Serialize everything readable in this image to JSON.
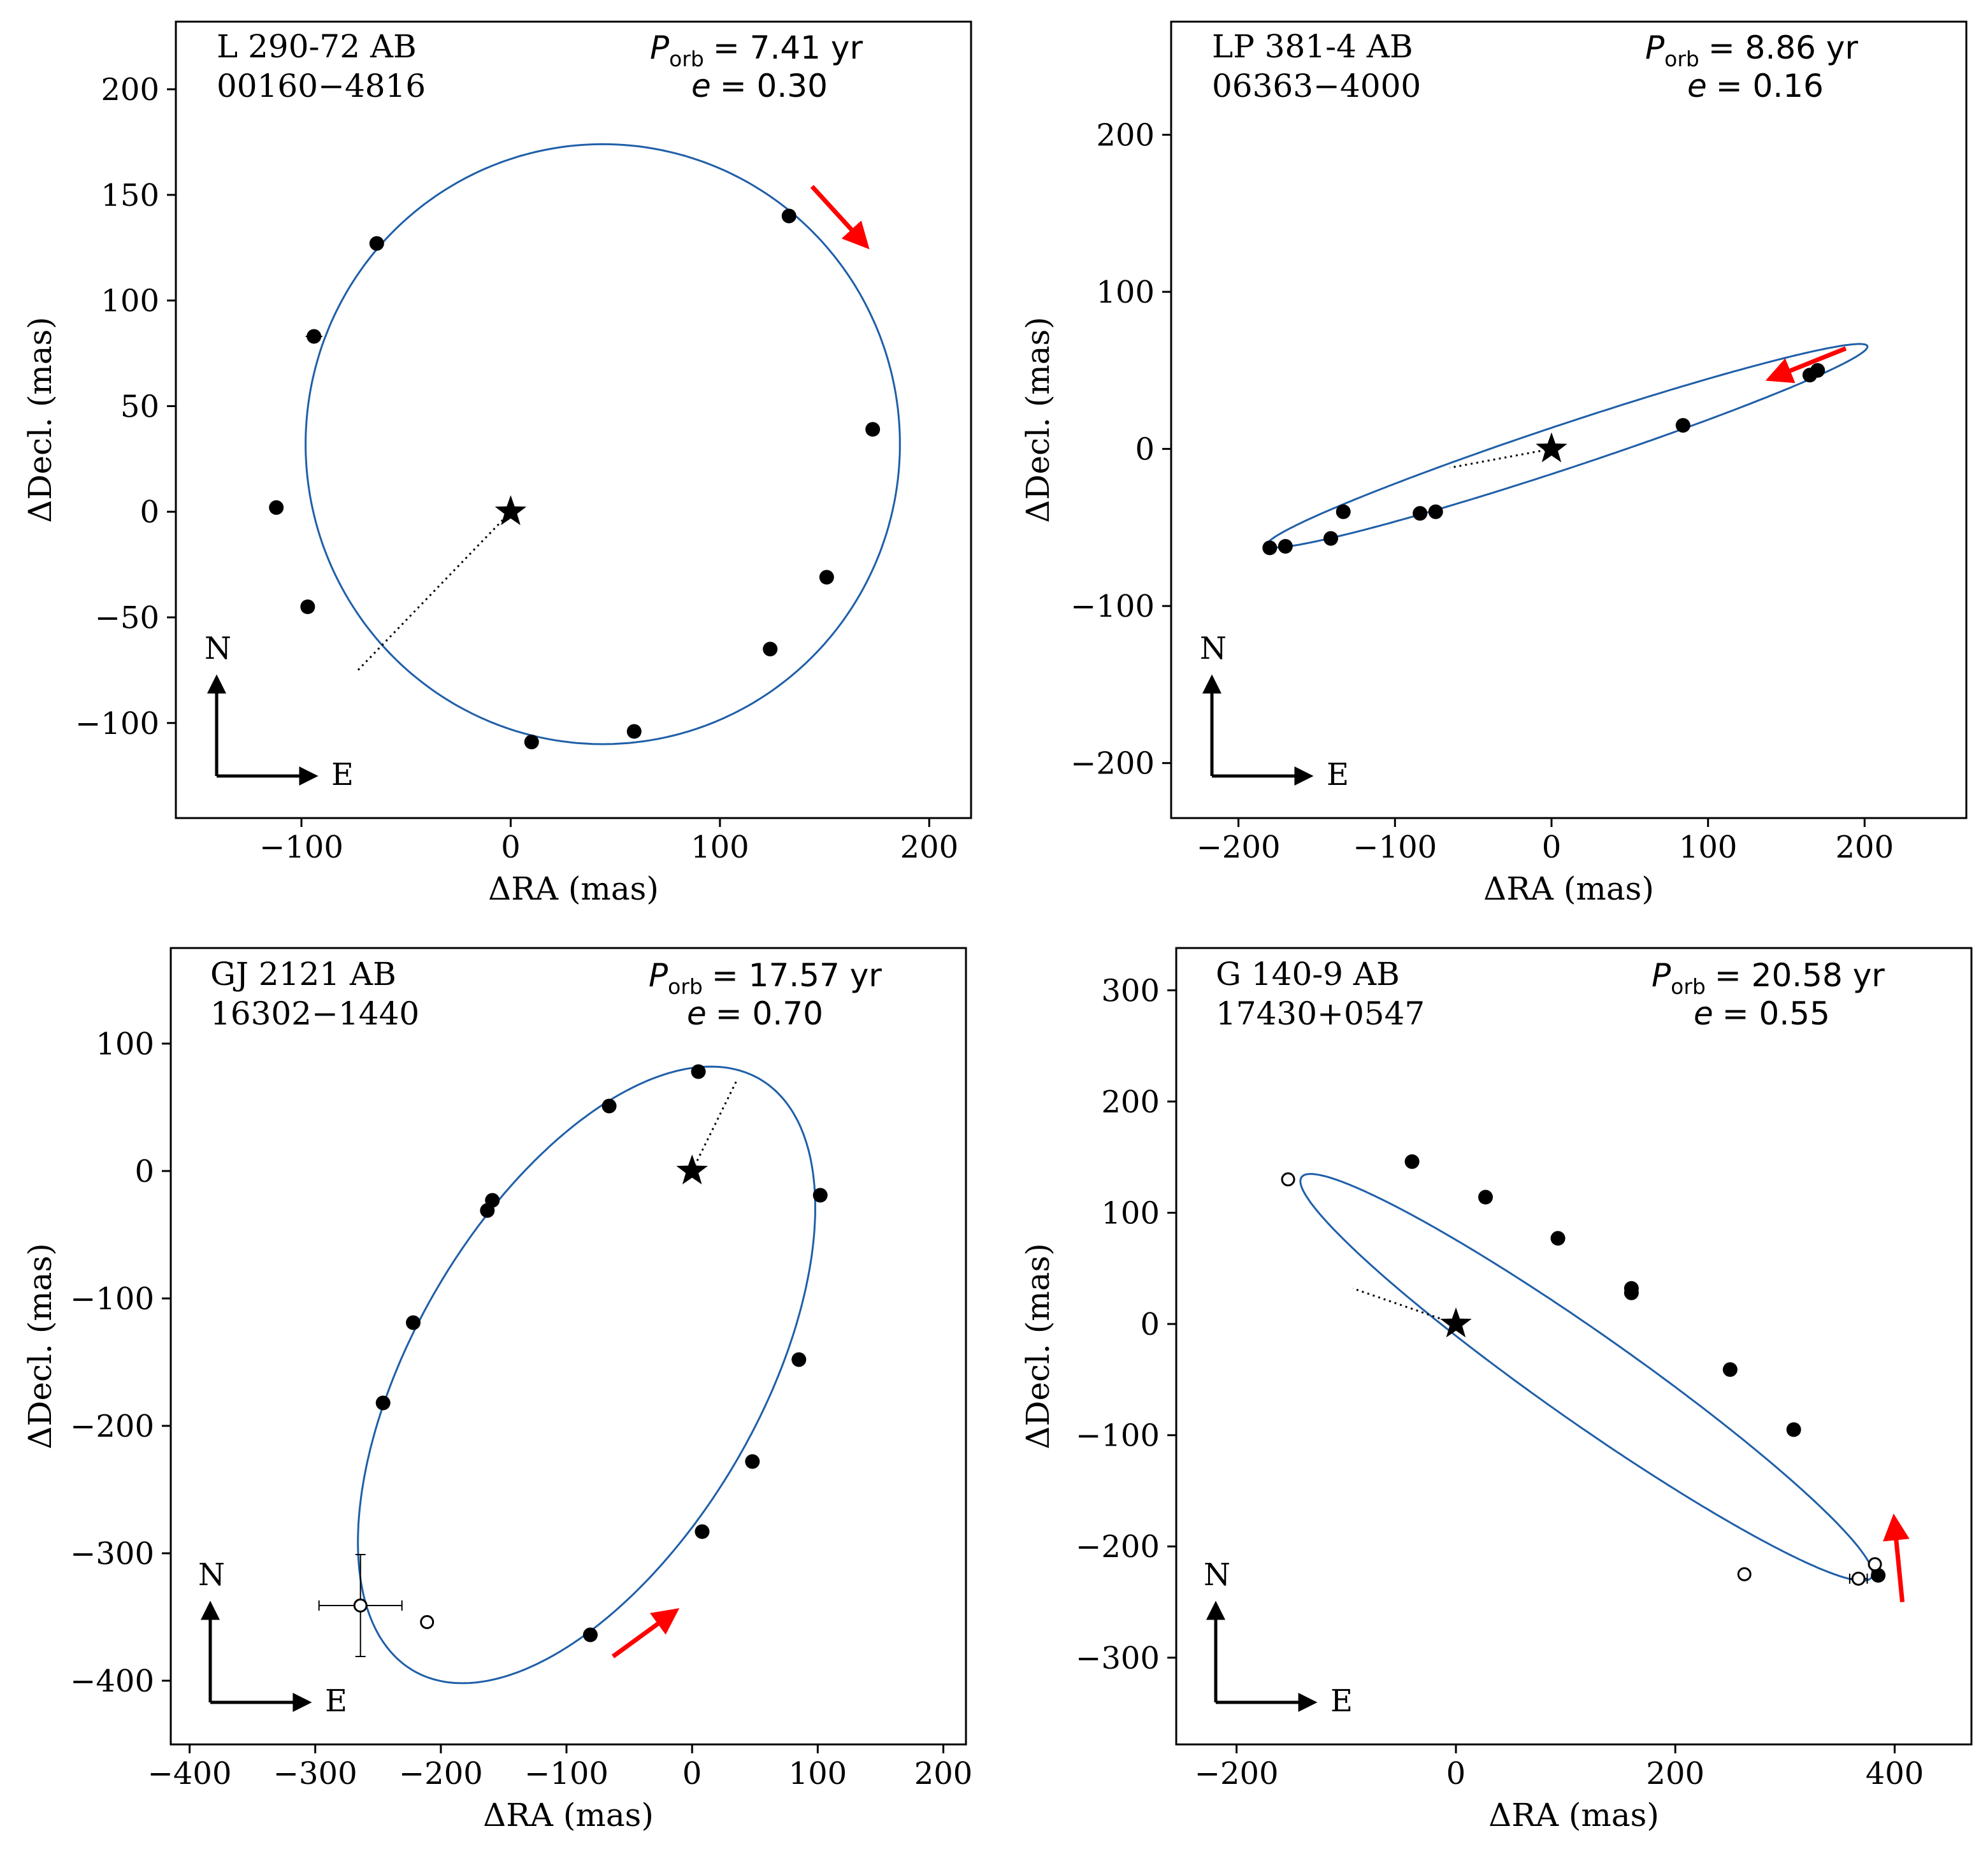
{
  "figure": {
    "xlabel": "ΔRA  (mas)",
    "ylabel": "ΔDecl.  (mas)",
    "compass": {
      "north": "N",
      "east": "E"
    },
    "colors": {
      "orbit": "#1f5fa8",
      "arrow": "#ff0000",
      "marker": "#000000"
    }
  },
  "chart_data": [
    {
      "type": "scatter",
      "name": "L 290-72 AB",
      "designation": "00160−4816",
      "period_symbol": "P",
      "period_subscript": "orb",
      "period_text": "=  7.41 yr",
      "ecc_symbol": "e",
      "ecc_text": "= 0.30",
      "xlabel": "ΔRA  (mas)",
      "ylabel": "ΔDecl.  (mas)",
      "xlim": [
        -160,
        220
      ],
      "ylim": [
        -145,
        232
      ],
      "xticks": [
        -100,
        0,
        100,
        200
      ],
      "xtick_labels": [
        "−100",
        "0",
        "100",
        "200"
      ],
      "yticks": [
        -100,
        -50,
        0,
        50,
        100,
        150,
        200
      ],
      "ytick_labels": [
        "−100",
        "−50",
        "0",
        "50",
        "100",
        "150",
        "200"
      ],
      "orbit": {
        "center": [
          44,
          32
        ],
        "semi_axes": [
          142,
          142
        ],
        "rotation_deg": 0
      },
      "periastron": [
        -73,
        -75
      ],
      "primary": [
        0,
        0
      ],
      "points": [
        [
          -64,
          127
        ],
        [
          -94,
          83
        ],
        [
          -112,
          2
        ],
        [
          -97,
          -45
        ],
        [
          10,
          -109
        ],
        [
          59,
          -104
        ],
        [
          124,
          -65
        ],
        [
          151,
          -31
        ],
        [
          173,
          39
        ],
        [
          133,
          140
        ]
      ],
      "error_bar_points": [
        [
          -94,
          83,
          4,
          3
        ]
      ],
      "open_points": [],
      "motion_arrow": {
        "from": [
          144,
          154
        ],
        "to": [
          168,
          128
        ]
      }
    },
    {
      "type": "scatter",
      "name": "LP 381-4 AB",
      "designation": "06363−4000",
      "period_symbol": "P",
      "period_subscript": "orb",
      "period_text": "=  8.86 yr",
      "ecc_symbol": "e",
      "ecc_text": "= 0.16",
      "xlabel": "ΔRA  (mas)",
      "ylabel": "ΔDecl.  (mas)",
      "xlim": [
        -243,
        265
      ],
      "ylim": [
        -235,
        272
      ],
      "xticks": [
        -200,
        -100,
        0,
        100,
        200
      ],
      "xtick_labels": [
        "−200",
        "−100",
        "0",
        "100",
        "200"
      ],
      "yticks": [
        -200,
        -100,
        0,
        100,
        200
      ],
      "ytick_labels": [
        "−200",
        "−100",
        "0",
        "100",
        "200"
      ],
      "orbit": {
        "center": [
          10,
          2
        ],
        "semi_axes": [
          202,
          14
        ],
        "rotation_deg": 18.3
      },
      "periastron": [
        -65,
        -12
      ],
      "primary": [
        0,
        0
      ],
      "points": [
        [
          -180,
          -63
        ],
        [
          -170,
          -62
        ],
        [
          -141,
          -57
        ],
        [
          -133,
          -40
        ],
        [
          -84,
          -41
        ],
        [
          -74,
          -40
        ],
        [
          84,
          15
        ],
        [
          165,
          47
        ],
        [
          170,
          50
        ]
      ],
      "error_bar_points": [],
      "open_points": [],
      "motion_arrow": {
        "from": [
          188,
          64
        ],
        "to": [
          143,
          46
        ]
      }
    },
    {
      "type": "scatter",
      "name": "GJ 2121 AB",
      "designation": "16302−1440",
      "period_symbol": "P",
      "period_subscript": "orb",
      "period_text": "= 17.57 yr",
      "ecc_symbol": "e",
      "ecc_text": "= 0.70",
      "xlabel": "ΔRA  (mas)",
      "ylabel": "ΔDecl.  (mas)",
      "xlim": [
        -415,
        218
      ],
      "ylim": [
        -450,
        175
      ],
      "xticks": [
        -400,
        -300,
        -200,
        -100,
        0,
        100,
        200
      ],
      "xtick_labels": [
        "−400",
        "−300",
        "−200",
        "−100",
        "0",
        "100",
        "200"
      ],
      "yticks": [
        -400,
        -300,
        -200,
        -100,
        0,
        100
      ],
      "ytick_labels": [
        "−400",
        "−300",
        "−200",
        "−100",
        "0",
        "100"
      ],
      "orbit": {
        "center": [
          -84,
          -160
        ],
        "semi_axes": [
          270,
          137
        ],
        "rotation_deg": 59
      },
      "periastron": [
        35,
        70
      ],
      "primary": [
        0,
        0
      ],
      "points": [
        [
          5,
          78
        ],
        [
          -66,
          51
        ],
        [
          -159,
          -23
        ],
        [
          -163,
          -31
        ],
        [
          -222,
          -119
        ],
        [
          -246,
          -182
        ],
        [
          -81,
          -364
        ],
        [
          8,
          -283
        ],
        [
          48,
          -228
        ],
        [
          85,
          -148
        ],
        [
          102,
          -19
        ]
      ],
      "error_bar_points": [],
      "open_points": [
        [
          -264,
          -341,
          33,
          40
        ],
        [
          -211,
          -354,
          0,
          0
        ]
      ],
      "motion_arrow": {
        "from": [
          -63,
          -381
        ],
        "to": [
          -17,
          -348
        ]
      }
    },
    {
      "type": "scatter",
      "name": "G 140-9 AB",
      "designation": "17430+0547",
      "period_symbol": "P",
      "period_subscript": "orb",
      "period_text": "= 20.58 yr",
      "ecc_symbol": "e",
      "ecc_text": "= 0.55",
      "xlabel": "ΔRA  (mas)",
      "ylabel": "ΔDecl.  (mas)",
      "xlim": [
        -255,
        470
      ],
      "ylim": [
        -378,
        338
      ],
      "xticks": [
        -200,
        0,
        200,
        400
      ],
      "xtick_labels": [
        "−200",
        "0",
        "200",
        "400"
      ],
      "yticks": [
        -300,
        -200,
        -100,
        0,
        100,
        200,
        300
      ],
      "ytick_labels": [
        "−300",
        "−200",
        "−100",
        "0",
        "100",
        "200",
        "300"
      ],
      "orbit": {
        "center": [
          119,
          -48
        ],
        "semi_axes": [
          316,
          40
        ],
        "rotation_deg": -34.7
      },
      "periastron": [
        -94,
        32
      ],
      "primary": [
        0,
        0
      ],
      "points": [
        [
          -40,
          146
        ],
        [
          27,
          114
        ],
        [
          93,
          77
        ],
        [
          160,
          32
        ],
        [
          160,
          28
        ],
        [
          250,
          -41
        ],
        [
          308,
          -95
        ],
        [
          385,
          -226
        ]
      ],
      "error_bar_points": [],
      "open_points": [
        [
          -153,
          130,
          0,
          0
        ],
        [
          263,
          -225,
          0,
          0
        ],
        [
          382,
          -216,
          0,
          0
        ],
        [
          367,
          -229,
          8,
          0
        ]
      ],
      "motion_arrow": {
        "from": [
          407,
          -250
        ],
        "to": [
          400,
          -180
        ]
      }
    }
  ]
}
